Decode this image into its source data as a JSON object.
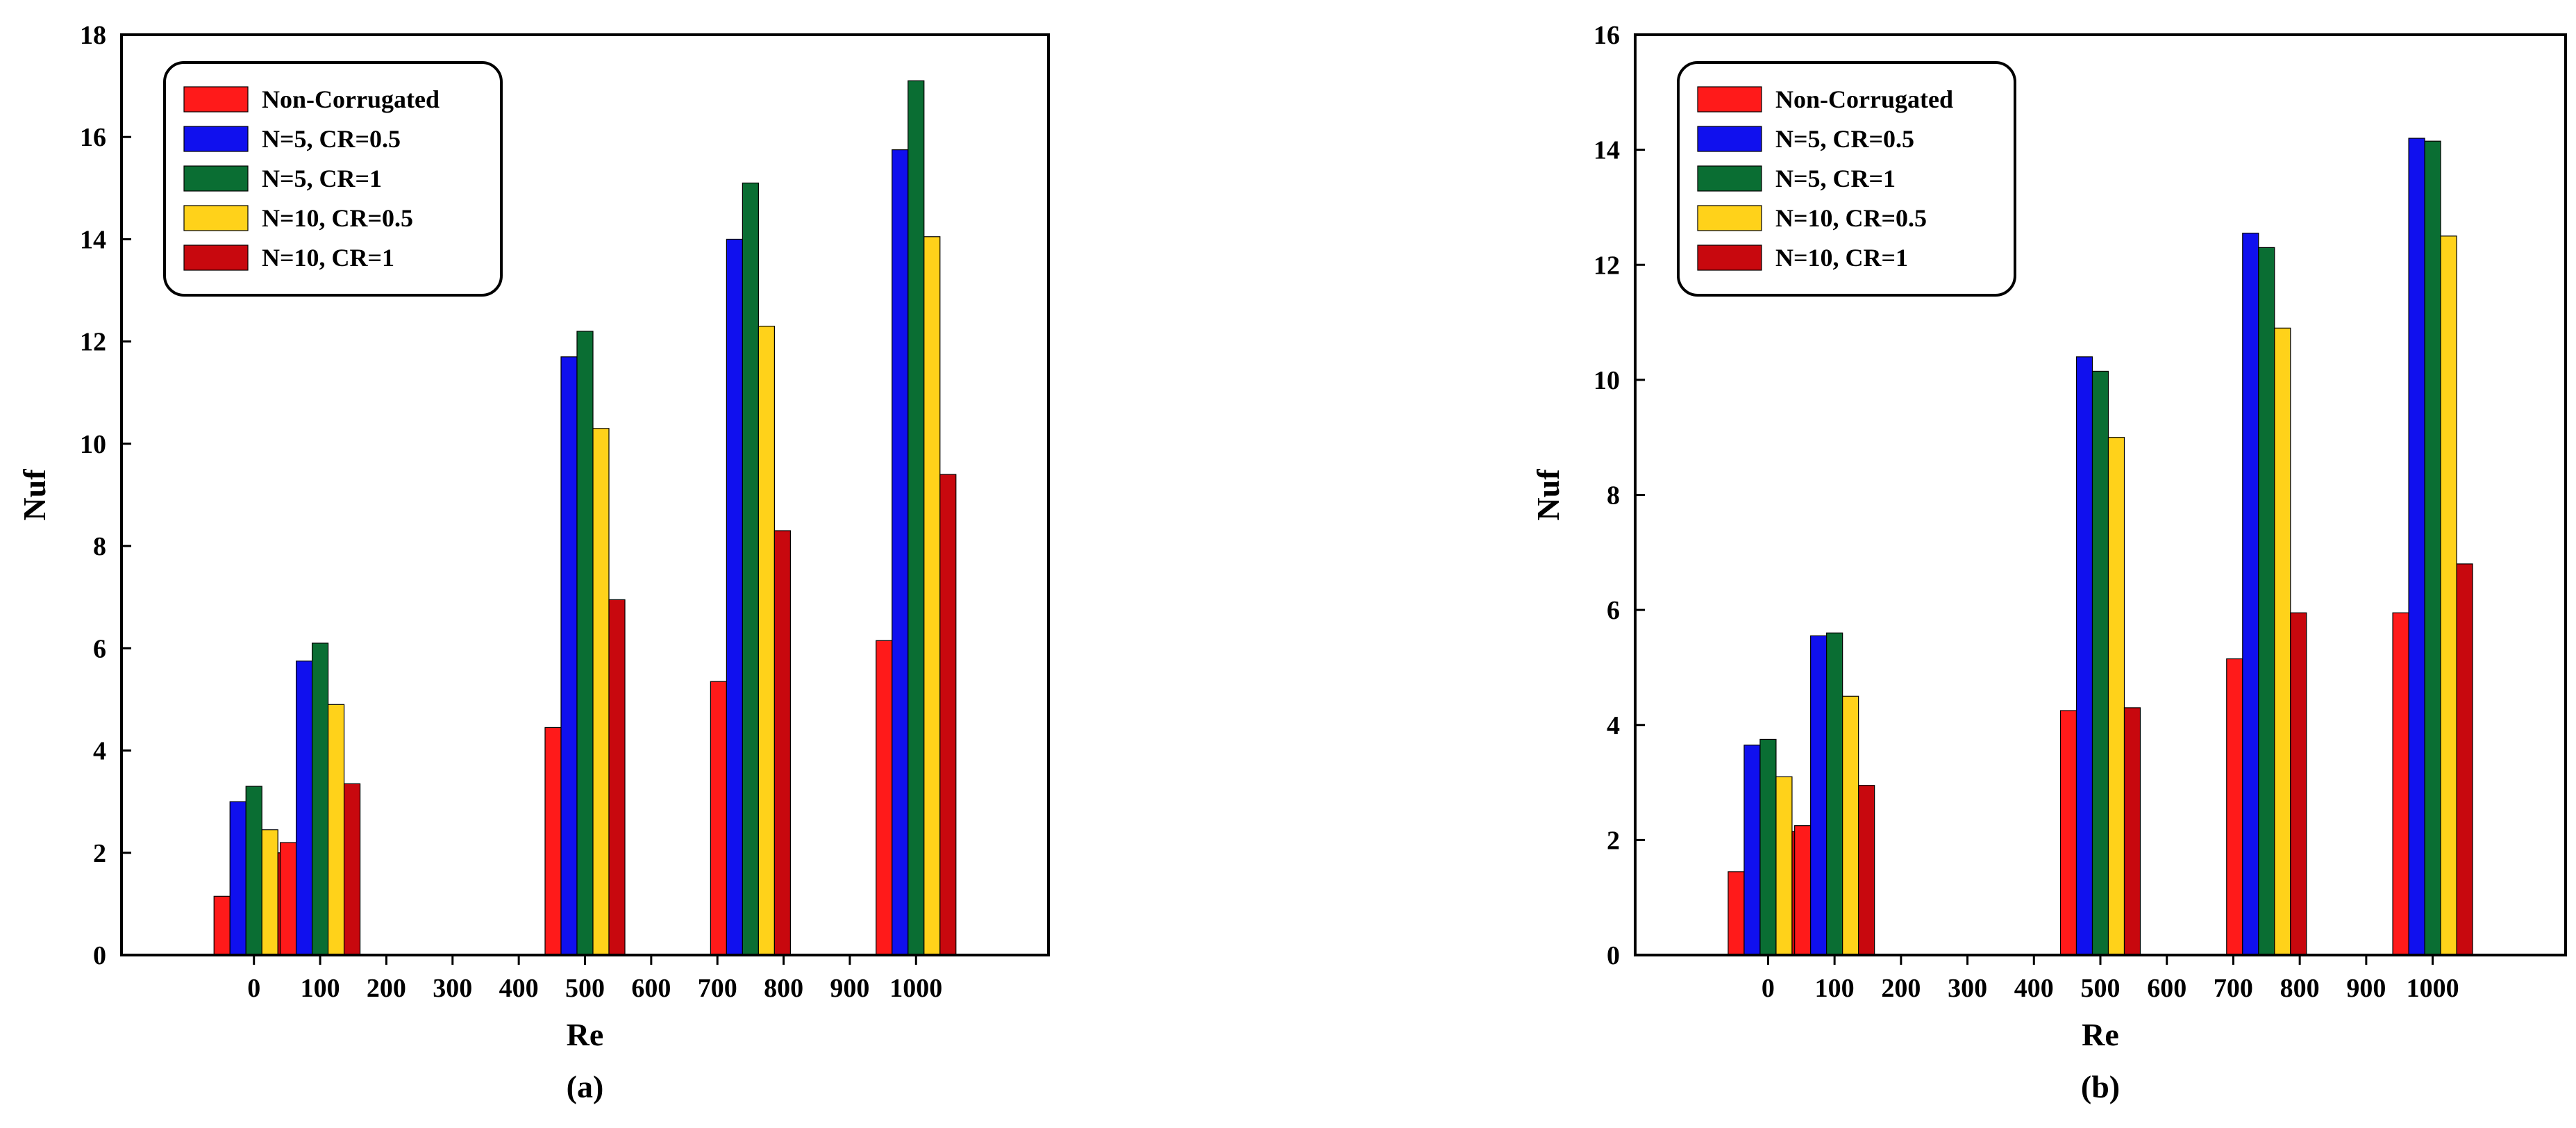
{
  "chart_data": [
    {
      "type": "bar",
      "caption": "(a)",
      "xlabel": "Re",
      "ylabel": "Nuf",
      "xlim": [
        -200,
        1200
      ],
      "ylim": [
        0,
        18
      ],
      "x_ticks": [
        0,
        100,
        200,
        300,
        400,
        500,
        600,
        700,
        800,
        900,
        1000
      ],
      "y_ticks": [
        0,
        2,
        4,
        6,
        8,
        10,
        12,
        14,
        16,
        18
      ],
      "legend_position": "top-left",
      "groups": [
        {
          "x": 0,
          "values": [
            1.15,
            3.0,
            3.3,
            2.45,
            2.0
          ]
        },
        {
          "x": 100,
          "values": [
            2.2,
            5.75,
            6.1,
            4.9,
            3.35
          ]
        },
        {
          "x": 500,
          "values": [
            4.45,
            11.7,
            12.2,
            10.3,
            6.95
          ]
        },
        {
          "x": 750,
          "values": [
            5.35,
            14.0,
            15.1,
            12.3,
            8.3
          ]
        },
        {
          "x": 1000,
          "values": [
            6.15,
            15.75,
            17.1,
            14.05,
            9.4
          ]
        }
      ]
    },
    {
      "type": "bar",
      "caption": "(b)",
      "xlabel": "Re",
      "ylabel": "Nuf",
      "xlim": [
        -200,
        1200
      ],
      "ylim": [
        0,
        16
      ],
      "x_ticks": [
        0,
        100,
        200,
        300,
        400,
        500,
        600,
        700,
        800,
        900,
        1000
      ],
      "y_ticks": [
        0,
        2,
        4,
        6,
        8,
        10,
        12,
        14,
        16
      ],
      "legend_position": "top-left",
      "groups": [
        {
          "x": 0,
          "values": [
            1.45,
            3.65,
            3.75,
            3.1,
            2.15
          ]
        },
        {
          "x": 100,
          "values": [
            2.25,
            5.55,
            5.6,
            4.5,
            2.95
          ]
        },
        {
          "x": 500,
          "values": [
            4.25,
            10.4,
            10.15,
            9.0,
            4.3
          ]
        },
        {
          "x": 750,
          "values": [
            5.15,
            12.55,
            12.3,
            10.9,
            5.95
          ]
        },
        {
          "x": 1000,
          "values": [
            5.95,
            14.2,
            14.15,
            12.5,
            6.8
          ]
        }
      ]
    }
  ],
  "series": [
    {
      "name": "Non-Corrugated",
      "color": "#ff1a1a"
    },
    {
      "name": "N=5, CR=0.5",
      "color": "#1010ee"
    },
    {
      "name": "N=5, CR=1",
      "color": "#0a6e33"
    },
    {
      "name": "N=10, CR=0.5",
      "color": "#ffd21a"
    },
    {
      "name": "N=10, CR=1",
      "color": "#c8080e"
    }
  ]
}
